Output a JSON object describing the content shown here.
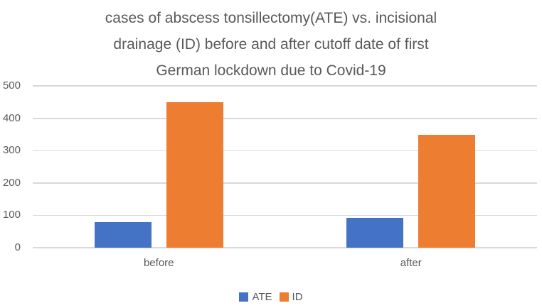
{
  "title": {
    "lines": [
      "cases of abscess tonsillectomy(ATE) vs. incisional",
      "drainage (ID) before and after cutoff date of first",
      "German lockdown due to Covid-19"
    ]
  },
  "chart_data": {
    "type": "bar",
    "title": "cases of abscess tonsillectomy(ATE) vs. incisional drainage (ID) before and after cutoff date of first German lockdown due to Covid-19",
    "categories": [
      "before",
      "after"
    ],
    "series": [
      {
        "name": "ATE",
        "color": "#4472C4",
        "values": [
          78,
          93
        ]
      },
      {
        "name": "ID",
        "color": "#ED7D31",
        "values": [
          450,
          348
        ]
      }
    ],
    "xlabel": "",
    "ylabel": "",
    "ylim": [
      0,
      500
    ],
    "yticks": [
      0,
      100,
      200,
      300,
      400,
      500
    ],
    "grid": true,
    "legend_position": "bottom"
  },
  "colors": {
    "text": "#595959",
    "gridline": "#d9d9d9",
    "background": "#ffffff",
    "ate_bar": "#4472C4",
    "id_bar": "#ED7D31"
  }
}
